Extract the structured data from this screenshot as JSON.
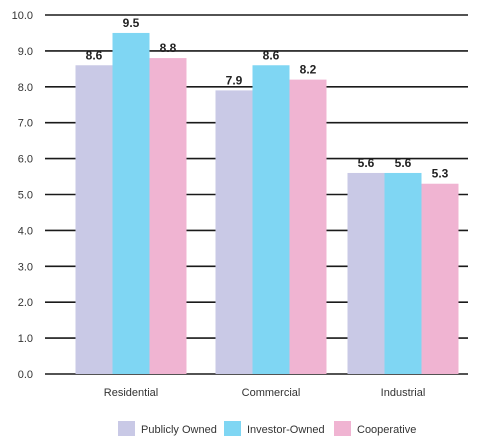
{
  "chart_data": {
    "type": "bar",
    "categories": [
      "Residential",
      "Commercial",
      "Industrial"
    ],
    "series": [
      {
        "name": "Publicly Owned",
        "values": [
          8.6,
          7.9,
          5.6
        ],
        "color": "#c9c9e6"
      },
      {
        "name": "Investor-Owned",
        "values": [
          9.5,
          8.6,
          5.6
        ],
        "color": "#7fd6f3"
      },
      {
        "name": "Cooperative",
        "values": [
          8.8,
          8.2,
          5.3
        ],
        "color": "#f0b4d2"
      }
    ],
    "y_ticks": [
      "0.0",
      "1.0",
      "2.0",
      "3.0",
      "4.0",
      "5.0",
      "6.0",
      "7.0",
      "8.0",
      "9.0",
      "10.0"
    ],
    "data_labels": [
      [
        "8.6",
        "7.9",
        "5.6"
      ],
      [
        "9.5",
        "8.6",
        "5.6"
      ],
      [
        "8.8",
        "8.2",
        "5.3"
      ]
    ],
    "ylim": [
      0,
      10
    ],
    "grid": true,
    "legend_position": "bottom",
    "title": "",
    "xlabel": "",
    "ylabel": ""
  }
}
